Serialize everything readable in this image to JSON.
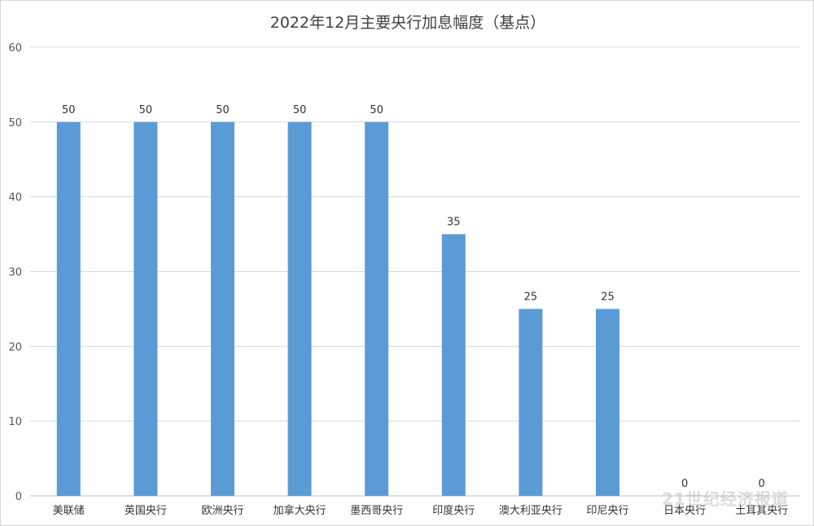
{
  "chart_data": {
    "type": "bar",
    "title": "2022年12月主要央行加息幅度（基点）",
    "categories": [
      "美联储",
      "英国央行",
      "欧洲央行",
      "加拿大央行",
      "墨西哥央行",
      "印度央行",
      "澳大利亚央行",
      "印尼央行",
      "日本央行",
      "土耳其央行"
    ],
    "values": [
      50,
      50,
      50,
      50,
      50,
      35,
      25,
      25,
      0,
      0
    ],
    "ylim": [
      0,
      60
    ],
    "yticks": [
      0,
      10,
      20,
      30,
      40,
      50,
      60
    ],
    "xlabel": "",
    "ylabel": "",
    "grid": true,
    "legend": "none",
    "bar_color": "#5b9bd5",
    "grid_color": "#d9d9d9"
  },
  "watermark": "21世纪经济报道"
}
